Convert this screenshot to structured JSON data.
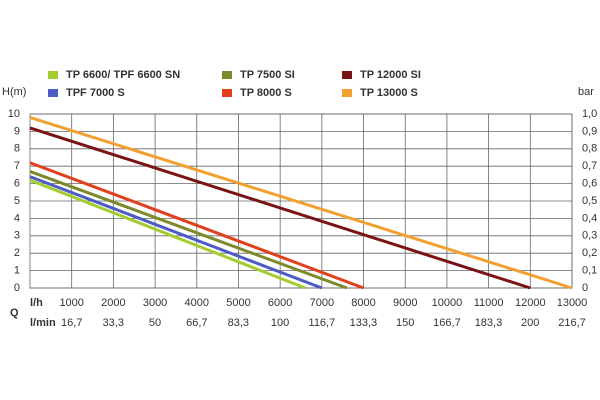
{
  "chart_data": {
    "type": "line",
    "ylabel": "H(m)",
    "y2label": "bar",
    "xlabel": "l/h",
    "x2label": "l/min",
    "qlabel": "Q",
    "xlim": [
      0,
      13000
    ],
    "xticks": [
      1000,
      2000,
      3000,
      4000,
      5000,
      6000,
      7000,
      8000,
      9000,
      10000,
      11000,
      12000,
      13000
    ],
    "x2lim": [
      0,
      216.7
    ],
    "x2ticks": [
      {
        "value": 16.7,
        "label": "16,7"
      },
      {
        "value": 33.3,
        "label": "33,3"
      },
      50,
      {
        "value": 66.7,
        "label": "66,7"
      },
      {
        "value": 83.3,
        "label": "83,3"
      },
      100,
      {
        "value": 116.7,
        "label": "116,7"
      },
      {
        "value": 133.3,
        "label": "133,3"
      },
      150,
      {
        "value": 166.7,
        "label": "166,7"
      },
      {
        "value": 183.3,
        "label": "183,3"
      },
      200,
      {
        "value": 216.7,
        "label": "216,7"
      }
    ],
    "ylim": [
      0,
      10
    ],
    "yticks": [
      0,
      1,
      2,
      3,
      4,
      5,
      6,
      7,
      8,
      9,
      10
    ],
    "y2lim": [
      0,
      1
    ],
    "y2ticks": [
      0,
      {
        "value": 0.1,
        "label": "0,1"
      },
      {
        "value": 0.2,
        "label": "0,2"
      },
      {
        "value": 0.3,
        "label": "0,3"
      },
      {
        "value": 0.4,
        "label": "0,4"
      },
      {
        "value": 0.5,
        "label": "0,5"
      },
      {
        "value": 0.6,
        "label": "0,6"
      },
      {
        "value": 0.7,
        "label": "0,7"
      },
      {
        "value": 0.8,
        "label": "0,8"
      },
      {
        "value": 0.9,
        "label": "0,9"
      },
      {
        "value": 1,
        "label": "1,0"
      }
    ],
    "grid": true,
    "series": [
      {
        "name": "TP 6600/ TPF 6600 SN",
        "color": "#a3cc2e",
        "x": [
          0,
          6600
        ],
        "values": [
          6.2,
          0
        ]
      },
      {
        "name": "TP 7500 SI",
        "color": "#7d8a2c",
        "x": [
          0,
          7600
        ],
        "values": [
          6.7,
          0
        ]
      },
      {
        "name": "TP 12000 SI",
        "color": "#7a1414",
        "x": [
          0,
          12000
        ],
        "values": [
          9.2,
          0
        ]
      },
      {
        "name": "TPF 7000 S",
        "color": "#4d5bc4",
        "x": [
          0,
          7000
        ],
        "values": [
          6.4,
          0
        ]
      },
      {
        "name": "TP 8000 S",
        "color": "#e0401e",
        "x": [
          0,
          8000
        ],
        "values": [
          7.2,
          0
        ]
      },
      {
        "name": "TP 13000 S",
        "color": "#f2a031",
        "x": [
          0,
          13000
        ],
        "values": [
          9.8,
          0
        ]
      }
    ]
  }
}
